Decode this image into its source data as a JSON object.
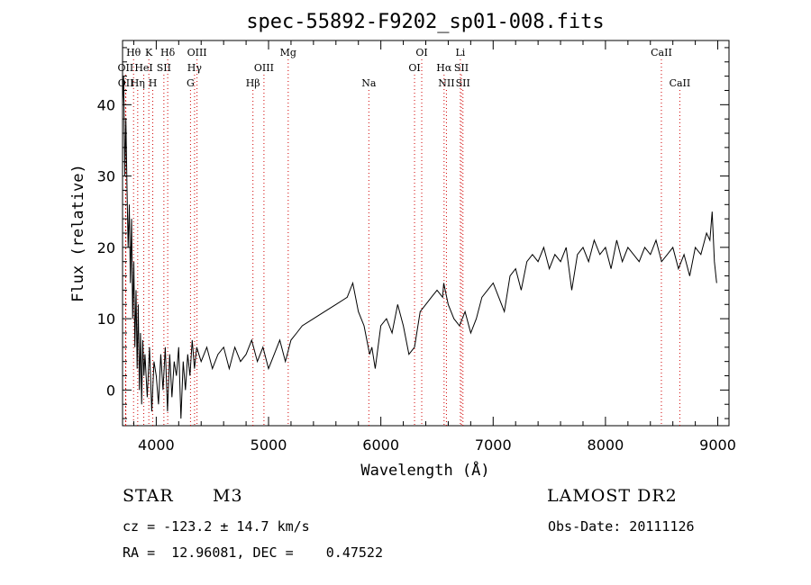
{
  "chart_data": {
    "type": "line",
    "title": "spec-55892-F9202_sp01-008.fits",
    "xlabel": "Wavelength (Å)",
    "ylabel": "Flux (relative)",
    "xlim": [
      3700,
      9100
    ],
    "ylim": [
      -5,
      49
    ],
    "xticks": [
      4000,
      5000,
      6000,
      7000,
      8000,
      9000
    ],
    "yticks": [
      0,
      10,
      20,
      30,
      40
    ],
    "grid": false,
    "line_color": "#000000",
    "marker_color": "#d00000",
    "series": [
      {
        "x": [
          3700,
          3710,
          3720,
          3730,
          3740,
          3750,
          3760,
          3770,
          3780,
          3790,
          3800,
          3810,
          3820,
          3830,
          3840,
          3850,
          3860,
          3870,
          3880,
          3890,
          3900,
          3920,
          3940,
          3960,
          3980,
          4000,
          4020,
          4040,
          4060,
          4080,
          4100,
          4120,
          4140,
          4160,
          4180,
          4200,
          4220,
          4240,
          4260,
          4280,
          4300,
          4320,
          4340,
          4360,
          4380,
          4400,
          4450,
          4500,
          4550,
          4600,
          4650,
          4700,
          4750,
          4800,
          4850,
          4900,
          4950,
          5000,
          5050,
          5100,
          5150,
          5200,
          5250,
          5300,
          5400,
          5500,
          5600,
          5700,
          5750,
          5800,
          5850,
          5900,
          5920,
          5950,
          6000,
          6050,
          6100,
          6150,
          6200,
          6250,
          6300,
          6350,
          6400,
          6450,
          6500,
          6550,
          6560,
          6600,
          6650,
          6700,
          6750,
          6800,
          6850,
          6900,
          6950,
          7000,
          7050,
          7100,
          7150,
          7200,
          7250,
          7300,
          7350,
          7400,
          7450,
          7500,
          7550,
          7600,
          7650,
          7700,
          7750,
          7800,
          7850,
          7900,
          7950,
          8000,
          8050,
          8100,
          8150,
          8200,
          8250,
          8300,
          8350,
          8400,
          8450,
          8500,
          8550,
          8600,
          8650,
          8700,
          8750,
          8800,
          8850,
          8900,
          8930,
          8950,
          8970,
          8990
        ],
        "y": [
          40,
          44,
          30,
          38,
          28,
          20,
          26,
          15,
          24,
          10,
          18,
          6,
          14,
          3,
          12,
          0,
          8,
          -2,
          7,
          2,
          5,
          -1,
          6,
          -3,
          4,
          2,
          -2,
          5,
          0,
          6,
          -3,
          5,
          -1,
          4,
          2,
          6,
          -4,
          4,
          0,
          5,
          2,
          7,
          3,
          6,
          5,
          4,
          6,
          3,
          5,
          6,
          3,
          6,
          4,
          5,
          7,
          4,
          6,
          3,
          5,
          7,
          4,
          7,
          8,
          9,
          10,
          11,
          12,
          13,
          15,
          11,
          9,
          5,
          6,
          3,
          9,
          10,
          8,
          12,
          9,
          5,
          6,
          11,
          12,
          13,
          14,
          13,
          15,
          12,
          10,
          9,
          11,
          8,
          10,
          13,
          14,
          15,
          13,
          11,
          16,
          17,
          14,
          18,
          19,
          18,
          20,
          17,
          19,
          18,
          20,
          14,
          19,
          20,
          18,
          21,
          19,
          20,
          17,
          21,
          18,
          20,
          19,
          18,
          20,
          19,
          21,
          18,
          19,
          20,
          17,
          19,
          16,
          20,
          19,
          22,
          21,
          25,
          18,
          15
        ]
      }
    ],
    "line_markers": [
      {
        "label": "Hθ",
        "x": 3798,
        "row": 0
      },
      {
        "label": "K",
        "x": 3934,
        "row": 0
      },
      {
        "label": "Hδ",
        "x": 4102,
        "row": 0
      },
      {
        "label": "OIII",
        "x": 4363,
        "row": 0
      },
      {
        "label": "Mg",
        "x": 5175,
        "row": 0
      },
      {
        "label": "OI",
        "x": 6364,
        "row": 0
      },
      {
        "label": "Li",
        "x": 6708,
        "row": 0
      },
      {
        "label": "CaII",
        "x": 8498,
        "row": 0
      },
      {
        "label": "OII",
        "x": 3727,
        "row": 1
      },
      {
        "label": "HeI",
        "x": 3889,
        "row": 1
      },
      {
        "label": "SII",
        "x": 4068,
        "row": 1
      },
      {
        "label": "Hγ",
        "x": 4341,
        "row": 1
      },
      {
        "label": "OIII",
        "x": 4959,
        "row": 1
      },
      {
        "label": "OI",
        "x": 6300,
        "row": 1
      },
      {
        "label": "Hα",
        "x": 6563,
        "row": 1
      },
      {
        "label": "SII",
        "x": 6717,
        "row": 1
      },
      {
        "label": "OII",
        "x": 3729,
        "row": 2
      },
      {
        "label": "Hη",
        "x": 3835,
        "row": 2
      },
      {
        "label": "H",
        "x": 3969,
        "row": 2
      },
      {
        "label": "G",
        "x": 4305,
        "row": 2
      },
      {
        "label": "Hβ",
        "x": 4861,
        "row": 2
      },
      {
        "label": "Na",
        "x": 5893,
        "row": 2
      },
      {
        "label": "NII",
        "x": 6584,
        "row": 2
      },
      {
        "label": "SII",
        "x": 6731,
        "row": 2
      },
      {
        "label": "CaII",
        "x": 8662,
        "row": 2
      }
    ]
  },
  "info": {
    "object_class": "STAR",
    "subclass": "M3",
    "survey": "LAMOST DR2",
    "cz": "cz = -123.2 ± 14.7 km/s",
    "obs_date": "Obs-Date: 20111126",
    "coords": "RA =  12.96081, DEC =    0.47522"
  }
}
